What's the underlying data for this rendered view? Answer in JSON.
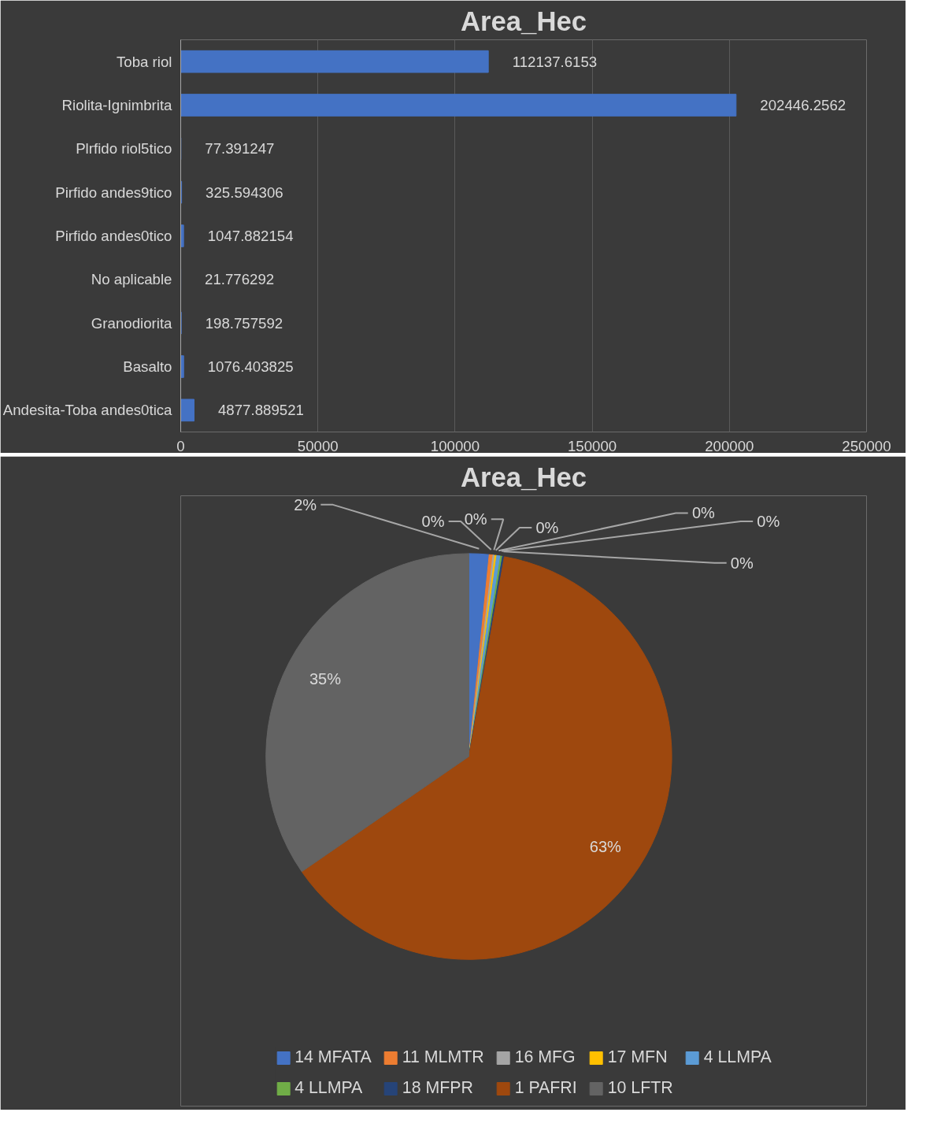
{
  "chart_data": [
    {
      "type": "bar",
      "orientation": "horizontal",
      "title": "Area_Hec",
      "categories": [
        "Toba riol",
        "Riolita-Ignimbrita",
        "Plrfido riol5tico",
        "Pirfido andes9tico",
        "Pirfido andes0tico",
        "No aplicable",
        "Granodiorita",
        "Basalto",
        "Andesita-Toba andes0tica"
      ],
      "values": [
        112137.6153,
        202446.2562,
        77.391247,
        325.594306,
        1047.882154,
        21.776292,
        198.757592,
        1076.403825,
        4877.889521
      ],
      "color": "#4472c4",
      "xlim": [
        0,
        250000
      ],
      "xticks": [
        0,
        50000,
        100000,
        150000,
        200000,
        250000
      ],
      "grid": "x",
      "data_labels": true
    },
    {
      "type": "pie",
      "title": "Area_Hec",
      "categories": [
        "14 MFATA",
        "11 MLMTR",
        "16 MFG",
        "17 MFN",
        "4 LLMPA",
        "4 LLMPA",
        "18 MFPR",
        "1 PAFRI",
        "10 LFTR"
      ],
      "values": [
        1.6,
        0.3,
        0.15,
        0.15,
        0.3,
        0.15,
        0.15,
        62.6,
        34.6
      ],
      "colors": [
        "#4472c4",
        "#ed7d31",
        "#a5a5a5",
        "#ffc000",
        "#5b9bd5",
        "#70ad47",
        "#264478",
        "#9e480e",
        "#636363"
      ],
      "value_labels": [
        "2%",
        "0%",
        "0%",
        "0%",
        "0%",
        "0%",
        "0%",
        "63%",
        "35%"
      ],
      "legend": "bottom"
    }
  ]
}
